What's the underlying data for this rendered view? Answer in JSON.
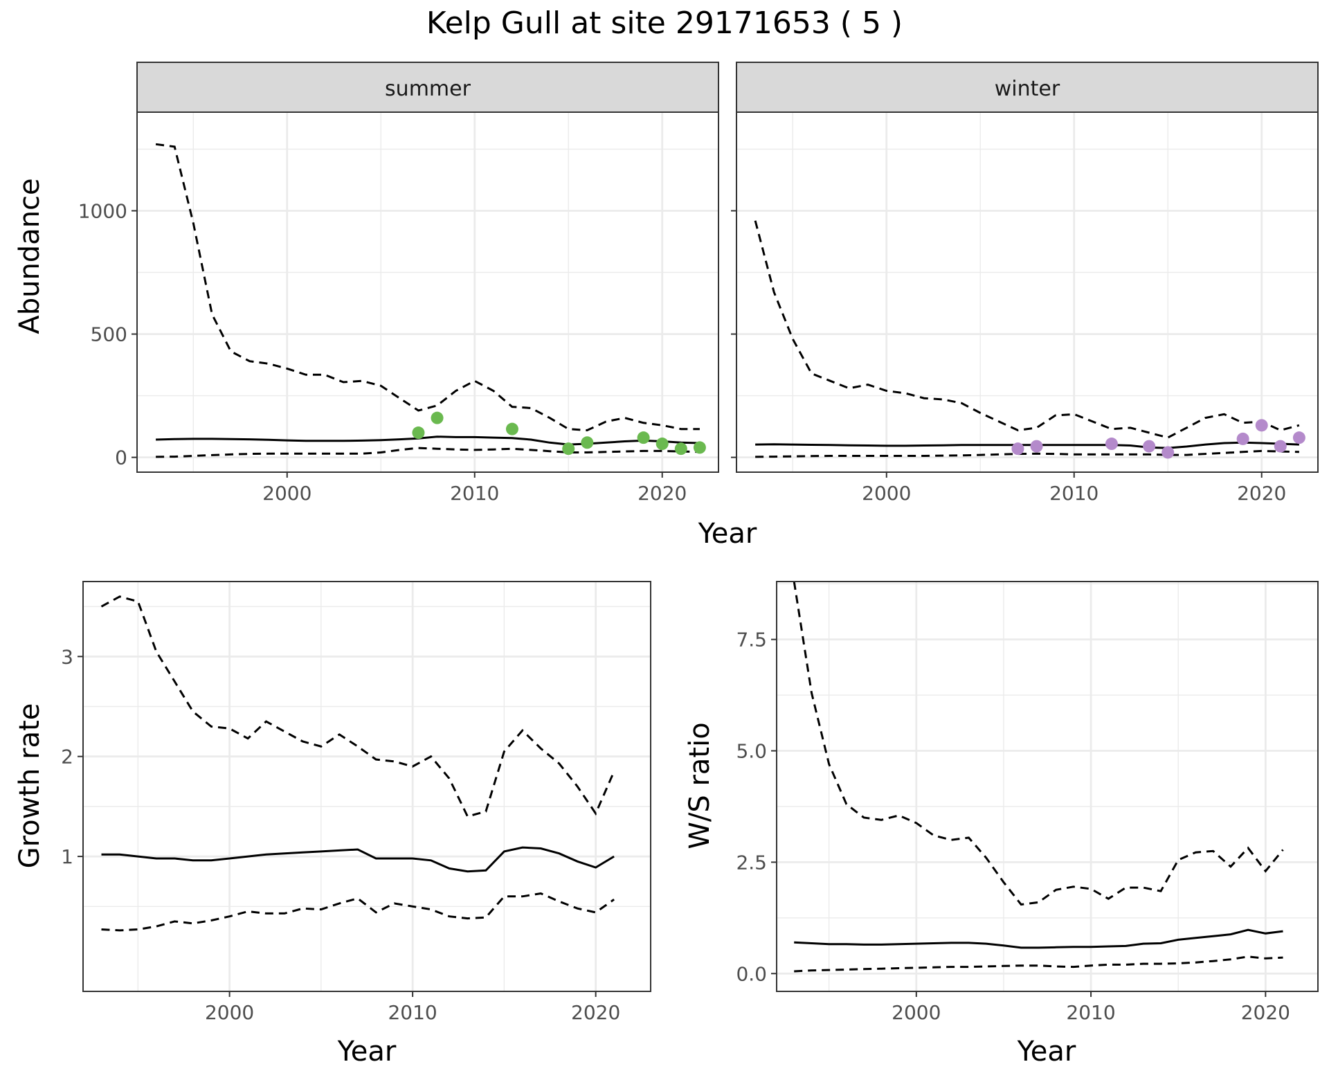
{
  "title": "Kelp Gull at site 29171653 ( 5 )",
  "colors": {
    "summer_points": "#6ab94f",
    "winter_points": "#b48acb",
    "lines": "#000000",
    "strip_bg": "#d9d9d9",
    "grid": "#ebebeb"
  },
  "chart_data": [
    {
      "type": "line",
      "panel": "summer",
      "strip_label": "summer",
      "ylabel": "Abundance",
      "xlabel": "Year",
      "xlim": [
        1992,
        2023
      ],
      "ylim": [
        -60,
        1400
      ],
      "xticks": [
        2000,
        2010,
        2020
      ],
      "yticks": [
        0,
        500,
        1000
      ],
      "x": [
        1993,
        1994,
        1995,
        1996,
        1997,
        1998,
        1999,
        2000,
        2001,
        2002,
        2003,
        2004,
        2005,
        2006,
        2007,
        2008,
        2009,
        2010,
        2011,
        2012,
        2013,
        2014,
        2015,
        2016,
        2017,
        2018,
        2019,
        2020,
        2021,
        2022
      ],
      "series": [
        {
          "role": "estimate",
          "style": "solid",
          "values": [
            72,
            74,
            75,
            75,
            74,
            73,
            71,
            69,
            67,
            67,
            67,
            68,
            70,
            73,
            77,
            84,
            82,
            82,
            80,
            78,
            72,
            60,
            52,
            55,
            60,
            65,
            68,
            65,
            60,
            58
          ]
        },
        {
          "role": "upper",
          "style": "dashed",
          "values": [
            1270,
            1260,
            950,
            580,
            430,
            390,
            380,
            360,
            335,
            335,
            305,
            310,
            290,
            240,
            190,
            210,
            270,
            310,
            270,
            205,
            200,
            160,
            115,
            110,
            145,
            160,
            140,
            130,
            115,
            115
          ]
        },
        {
          "role": "lower",
          "style": "dashed",
          "values": [
            2,
            3,
            6,
            9,
            12,
            14,
            15,
            15,
            15,
            15,
            15,
            15,
            20,
            30,
            38,
            35,
            32,
            30,
            32,
            35,
            30,
            25,
            20,
            20,
            22,
            24,
            26,
            26,
            24,
            22
          ]
        }
      ],
      "points": {
        "x": [
          2007,
          2008,
          2012,
          2015,
          2016,
          2019,
          2020,
          2021,
          2022
        ],
        "y": [
          100,
          160,
          115,
          35,
          60,
          80,
          55,
          35,
          40
        ]
      }
    },
    {
      "type": "line",
      "panel": "winter",
      "strip_label": "winter",
      "xlim": [
        1992,
        2023
      ],
      "ylim": [
        -60,
        1400
      ],
      "xticks": [
        2000,
        2010,
        2020
      ],
      "yticks": [
        0,
        500,
        1000
      ],
      "x": [
        1993,
        1994,
        1995,
        1996,
        1997,
        1998,
        1999,
        2000,
        2001,
        2002,
        2003,
        2004,
        2005,
        2006,
        2007,
        2008,
        2009,
        2010,
        2011,
        2012,
        2013,
        2014,
        2015,
        2016,
        2017,
        2018,
        2019,
        2020,
        2021,
        2022
      ],
      "series": [
        {
          "role": "estimate",
          "style": "solid",
          "values": [
            52,
            53,
            52,
            51,
            50,
            49,
            48,
            47,
            47,
            48,
            49,
            50,
            50,
            50,
            50,
            50,
            50,
            50,
            50,
            50,
            48,
            40,
            38,
            44,
            52,
            58,
            60,
            58,
            55,
            52
          ]
        },
        {
          "role": "upper",
          "style": "dashed",
          "values": [
            960,
            670,
            480,
            340,
            310,
            280,
            295,
            270,
            260,
            240,
            235,
            220,
            180,
            145,
            110,
            120,
            170,
            175,
            145,
            115,
            120,
            100,
            80,
            120,
            160,
            175,
            140,
            145,
            110,
            130
          ]
        },
        {
          "role": "lower",
          "style": "dashed",
          "values": [
            2,
            3,
            4,
            5,
            6,
            6,
            6,
            6,
            6,
            6,
            7,
            8,
            10,
            12,
            14,
            15,
            14,
            12,
            12,
            12,
            12,
            12,
            10,
            10,
            14,
            18,
            22,
            26,
            24,
            22
          ]
        }
      ],
      "points": {
        "x": [
          2007,
          2008,
          2012,
          2014,
          2015,
          2019,
          2020,
          2021,
          2022
        ],
        "y": [
          35,
          45,
          55,
          45,
          20,
          75,
          130,
          45,
          80
        ]
      }
    },
    {
      "type": "line",
      "panel": "growth",
      "ylabel": "Growth rate",
      "xlabel": "Year",
      "xlim": [
        1992,
        2023
      ],
      "ylim": [
        -0.35,
        3.75
      ],
      "xticks": [
        2000,
        2010,
        2020
      ],
      "yticks": [
        1,
        2,
        3
      ],
      "x": [
        1993,
        1994,
        1995,
        1996,
        1997,
        1998,
        1999,
        2000,
        2001,
        2002,
        2003,
        2004,
        2005,
        2006,
        2007,
        2008,
        2009,
        2010,
        2011,
        2012,
        2013,
        2014,
        2015,
        2016,
        2017,
        2018,
        2019,
        2020,
        2021
      ],
      "series": [
        {
          "role": "estimate",
          "style": "solid",
          "values": [
            1.02,
            1.02,
            1.0,
            0.98,
            0.98,
            0.96,
            0.96,
            0.98,
            1.0,
            1.02,
            1.03,
            1.04,
            1.05,
            1.06,
            1.07,
            0.98,
            0.98,
            0.98,
            0.96,
            0.88,
            0.85,
            0.86,
            1.05,
            1.09,
            1.08,
            1.03,
            0.95,
            0.89,
            1.0
          ]
        },
        {
          "role": "upper",
          "style": "dashed",
          "values": [
            3.5,
            3.6,
            3.55,
            3.05,
            2.75,
            2.45,
            2.3,
            2.28,
            2.18,
            2.35,
            2.25,
            2.15,
            2.1,
            2.22,
            2.1,
            1.97,
            1.95,
            1.9,
            2.0,
            1.78,
            1.4,
            1.45,
            2.05,
            2.26,
            2.08,
            1.93,
            1.7,
            1.43,
            1.85
          ]
        },
        {
          "role": "lower",
          "style": "dashed",
          "values": [
            0.27,
            0.26,
            0.27,
            0.3,
            0.35,
            0.33,
            0.36,
            0.4,
            0.45,
            0.43,
            0.43,
            0.48,
            0.47,
            0.53,
            0.58,
            0.44,
            0.53,
            0.5,
            0.47,
            0.4,
            0.38,
            0.39,
            0.6,
            0.6,
            0.63,
            0.55,
            0.48,
            0.44,
            0.57
          ]
        }
      ]
    },
    {
      "type": "line",
      "panel": "ratio",
      "ylabel": "W/S ratio",
      "xlabel": "Year",
      "xlim": [
        1992,
        2023
      ],
      "ylim": [
        -0.4,
        8.8
      ],
      "xticks": [
        2000,
        2010,
        2020
      ],
      "yticks": [
        0.0,
        2.5,
        5.0,
        7.5
      ],
      "ytick_labels": [
        "0.0",
        "2.5",
        "5.0",
        "7.5"
      ],
      "x": [
        1993,
        1994,
        1995,
        1996,
        1997,
        1998,
        1999,
        2000,
        2001,
        2002,
        2003,
        2004,
        2005,
        2006,
        2007,
        2008,
        2009,
        2010,
        2011,
        2012,
        2013,
        2014,
        2015,
        2016,
        2017,
        2018,
        2019,
        2020,
        2021
      ],
      "series": [
        {
          "role": "estimate",
          "style": "solid",
          "values": [
            0.7,
            0.68,
            0.66,
            0.66,
            0.65,
            0.65,
            0.66,
            0.67,
            0.68,
            0.69,
            0.69,
            0.67,
            0.63,
            0.58,
            0.58,
            0.59,
            0.6,
            0.6,
            0.61,
            0.62,
            0.67,
            0.68,
            0.76,
            0.8,
            0.84,
            0.88,
            0.98,
            0.9,
            0.95
          ]
        },
        {
          "role": "upper",
          "style": "dashed",
          "values": [
            8.8,
            6.3,
            4.7,
            3.8,
            3.5,
            3.45,
            3.55,
            3.38,
            3.1,
            3.0,
            3.05,
            2.6,
            2.05,
            1.55,
            1.6,
            1.88,
            1.95,
            1.9,
            1.68,
            1.93,
            1.93,
            1.85,
            2.55,
            2.72,
            2.75,
            2.4,
            2.82,
            2.3,
            2.78
          ]
        },
        {
          "role": "lower",
          "style": "dashed",
          "values": [
            0.05,
            0.07,
            0.08,
            0.09,
            0.1,
            0.11,
            0.12,
            0.13,
            0.14,
            0.15,
            0.15,
            0.16,
            0.17,
            0.18,
            0.18,
            0.16,
            0.15,
            0.18,
            0.2,
            0.2,
            0.22,
            0.22,
            0.23,
            0.25,
            0.28,
            0.32,
            0.38,
            0.34,
            0.36
          ]
        }
      ]
    }
  ]
}
